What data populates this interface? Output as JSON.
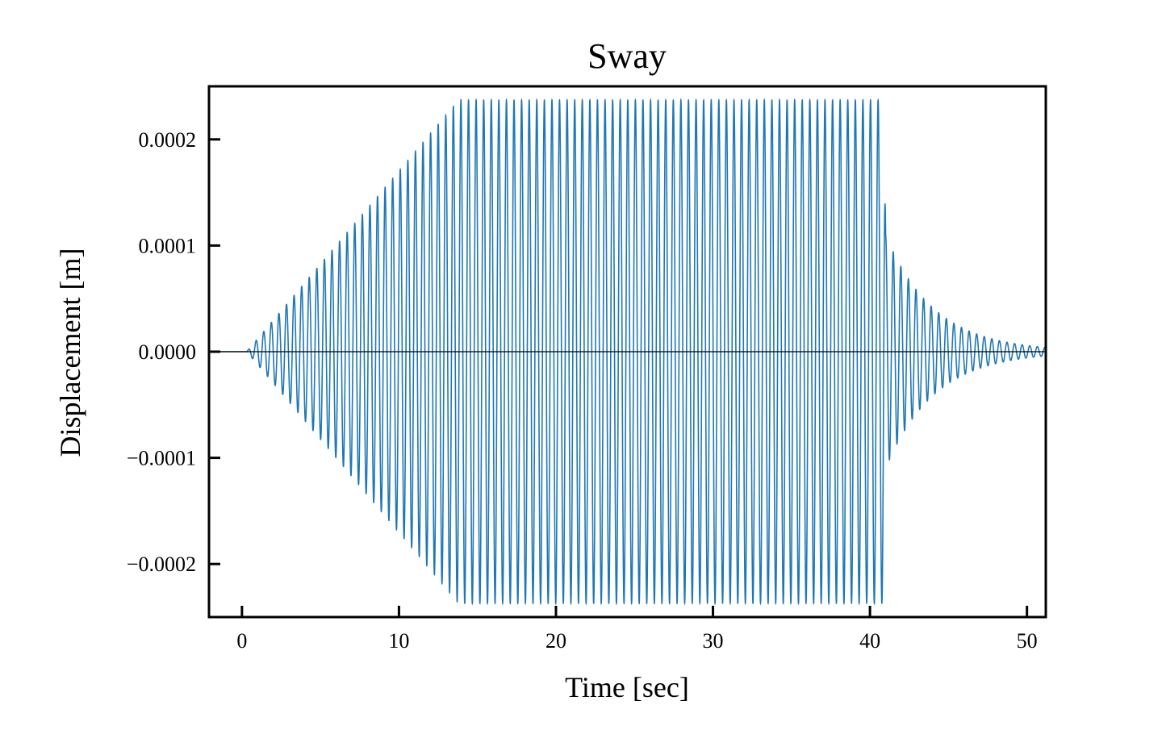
{
  "chart_data": {
    "type": "line",
    "title": "Sway",
    "xlabel": "Time [sec]",
    "ylabel": "Displacement [m]",
    "xlim": [
      -2.1,
      51.2
    ],
    "ylim": [
      -0.00025,
      0.00025
    ],
    "x_ticks": [
      0,
      10,
      20,
      30,
      40,
      50
    ],
    "x_tick_labels": [
      "0",
      "10",
      "20",
      "30",
      "40",
      "50"
    ],
    "y_ticks": [
      -0.0002,
      -0.0001,
      0.0,
      0.0001,
      0.0002
    ],
    "y_tick_labels": [
      "−0.0002",
      "−0.0001",
      "0.0000",
      "0.0001",
      "0.0002"
    ],
    "grid": false,
    "legend": "none",
    "zero_line": true,
    "series": [
      {
        "color": "#1f77b4",
        "frequency_hz": 2.07,
        "envelope": {
          "t": [
            -2.1,
            0.3,
            13.8,
            40.9,
            41.0,
            51.2
          ],
          "amplitude": [
            0,
            0,
            0.000237,
            0.000237,
            0.00011,
            4e-06
          ]
        }
      }
    ]
  }
}
